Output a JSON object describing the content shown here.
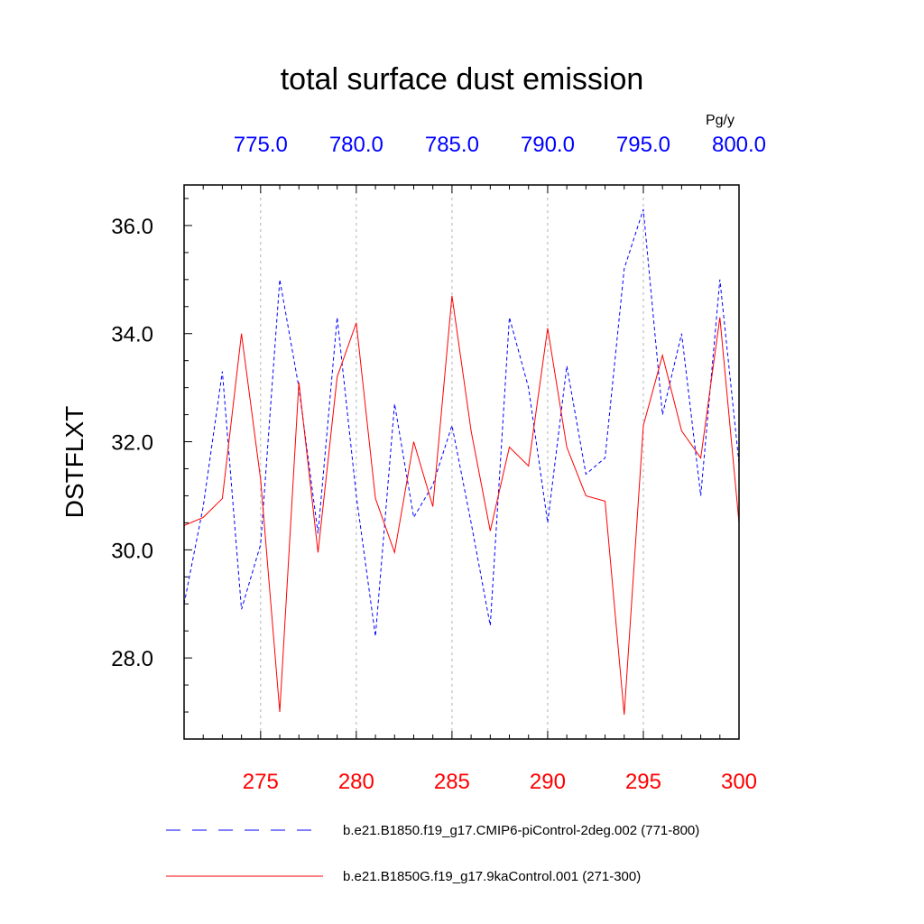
{
  "chart_data": {
    "type": "line",
    "title": "total surface dust emission",
    "units": "Pg/y",
    "ylabel": "DSTFLXT",
    "ylim": [
      26.5,
      36.75
    ],
    "yticks": [
      "28.0",
      "30.0",
      "32.0",
      "34.0",
      "36.0"
    ],
    "ytick_values": [
      28,
      30,
      32,
      34,
      36
    ],
    "grid": "vertical dashed at major x ticks",
    "top_axis": {
      "range": [
        771,
        800
      ],
      "ticks": [
        775,
        780,
        785,
        790,
        795,
        800
      ],
      "tick_labels": [
        "775.0",
        "780.0",
        "785.0",
        "790.0",
        "795.0",
        "800.0"
      ],
      "color": "#0000ff"
    },
    "bottom_axis": {
      "range": [
        271,
        300
      ],
      "ticks": [
        275,
        280,
        285,
        290,
        295,
        300
      ],
      "tick_labels": [
        "275",
        "280",
        "285",
        "290",
        "295",
        "300"
      ],
      "color": "#ff0000"
    },
    "series": [
      {
        "name": "b.e21.B1850.f19_g17.CMIP6-piControl-2deg.002 (771-800)",
        "color": "#0000ff",
        "style": "dashed",
        "axis": "top",
        "x": [
          771,
          772,
          773,
          774,
          775,
          776,
          777,
          778,
          779,
          780,
          781,
          782,
          783,
          784,
          785,
          786,
          787,
          788,
          789,
          790,
          791,
          792,
          793,
          794,
          795,
          796,
          797,
          798,
          799,
          800
        ],
        "values": [
          29.0,
          30.8,
          33.3,
          28.9,
          30.1,
          35.0,
          33.0,
          30.3,
          34.3,
          31.0,
          28.4,
          32.7,
          30.6,
          31.2,
          32.3,
          30.5,
          28.6,
          34.3,
          33.0,
          30.5,
          33.4,
          31.4,
          31.7,
          35.2,
          36.3,
          32.5,
          34.0,
          31.0,
          35.0,
          31.6
        ]
      },
      {
        "name": "b.e21.B1850G.f19_g17.9kaControl.001 (271-300)",
        "color": "#ff0000",
        "style": "solid",
        "axis": "bottom",
        "x": [
          271,
          272,
          273,
          274,
          275,
          276,
          277,
          278,
          279,
          280,
          281,
          282,
          283,
          284,
          285,
          286,
          287,
          288,
          289,
          290,
          291,
          292,
          293,
          294,
          295,
          296,
          297,
          298,
          299,
          300
        ],
        "values": [
          30.45,
          30.6,
          30.95,
          34.0,
          31.3,
          27.0,
          33.1,
          29.95,
          33.2,
          34.2,
          30.95,
          29.95,
          32.0,
          30.8,
          34.7,
          32.2,
          30.35,
          31.9,
          31.55,
          34.1,
          31.9,
          31.0,
          30.9,
          26.95,
          32.3,
          33.6,
          32.2,
          31.7,
          34.3,
          30.5
        ]
      }
    ],
    "legend": {
      "placement": "bottom",
      "entries": [
        "b.e21.B1850.f19_g17.CMIP6-piControl-2deg.002 (771-800)",
        "b.e21.B1850G.f19_g17.9kaControl.001 (271-300)"
      ]
    }
  }
}
